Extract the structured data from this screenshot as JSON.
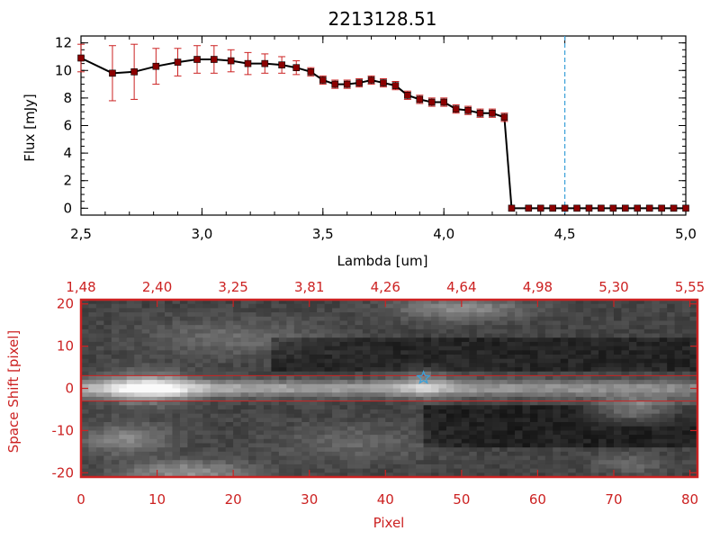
{
  "chart_data": [
    {
      "type": "line",
      "title": "2213128.51",
      "xlabel": "Lambda [um]",
      "ylabel": "Flux [mJy]",
      "xlim": [
        2.5,
        5.0
      ],
      "ylim": [
        -0.5,
        12.5
      ],
      "xticks": [
        2.5,
        3.0,
        3.5,
        4.0,
        4.5,
        5.0
      ],
      "xtick_labels": [
        "2,5",
        "3,0",
        "3,5",
        "4,0",
        "4,5",
        "5,0"
      ],
      "yticks": [
        0,
        2,
        4,
        6,
        8,
        10,
        12
      ],
      "ytick_labels": [
        "0",
        "2",
        "4",
        "6",
        "8",
        "10",
        "12"
      ],
      "vline_x": 4.5,
      "series": [
        {
          "x": [
            2.5,
            2.63,
            2.72,
            2.81,
            2.9,
            2.98,
            3.05,
            3.12,
            3.19,
            3.26,
            3.33,
            3.39,
            3.45,
            3.5,
            3.55,
            3.6,
            3.65,
            3.7,
            3.75,
            3.8,
            3.85,
            3.9,
            3.95,
            4.0,
            4.05,
            4.1,
            4.15,
            4.2,
            4.25,
            4.28,
            4.35,
            4.4,
            4.45,
            4.5,
            4.55,
            4.6,
            4.65,
            4.7,
            4.75,
            4.8,
            4.85,
            4.9,
            4.95,
            5.0
          ],
          "y": [
            10.9,
            9.8,
            9.9,
            10.3,
            10.6,
            10.8,
            10.8,
            10.7,
            10.5,
            10.5,
            10.4,
            10.2,
            9.9,
            9.3,
            9.0,
            9.0,
            9.1,
            9.3,
            9.1,
            8.9,
            8.2,
            7.9,
            7.7,
            7.7,
            7.2,
            7.1,
            6.9,
            6.9,
            6.6,
            0.0,
            0.0,
            0.0,
            0.0,
            0.0,
            0.0,
            0.0,
            0.0,
            0.0,
            0.0,
            0.0,
            0.0,
            0.0,
            0.0,
            0.0
          ],
          "yerr": [
            1.0,
            2.0,
            2.0,
            1.3,
            1.0,
            1.0,
            1.0,
            0.8,
            0.8,
            0.7,
            0.6,
            0.5,
            0.3,
            0.3,
            0.3,
            0.3,
            0.3,
            0.3,
            0.3,
            0.3,
            0.3,
            0.3,
            0.3,
            0.3,
            0.3,
            0.3,
            0.3,
            0.3,
            0.3,
            0.0,
            0.0,
            0.0,
            0.0,
            0.0,
            0.0,
            0.0,
            0.0,
            0.0,
            0.0,
            0.0,
            0.0,
            0.0,
            0.0,
            0.0
          ]
        }
      ],
      "colors": {
        "line": "#000000",
        "markers": "#8b0000",
        "errorbars": "#cc2222",
        "vline": "#3aa0d8"
      }
    },
    {
      "type": "heatmap",
      "xlabel": "Pixel",
      "ylabel": "Space Shift [pixel]",
      "xlim": [
        0,
        81
      ],
      "ylim": [
        -21,
        21
      ],
      "xticks": [
        0,
        10,
        20,
        30,
        40,
        50,
        60,
        70,
        80
      ],
      "xtick_labels": [
        "0",
        "10",
        "20",
        "30",
        "40",
        "50",
        "60",
        "70",
        "80"
      ],
      "yticks": [
        20,
        10,
        0,
        -10,
        -20
      ],
      "ytick_labels": [
        "20",
        "10",
        "0",
        "-10",
        "-20"
      ],
      "top_axis_tick_labels": [
        "1,48",
        "2,40",
        "3,25",
        "3,81",
        "4,26",
        "4,64",
        "4,98",
        "5,30",
        "5,55"
      ],
      "aperture_lines_y": [
        3,
        -3
      ],
      "marker": {
        "x": 45,
        "y": 2.5
      },
      "colors": {
        "axes": "#cc2222",
        "marker": "#3aa0d8"
      }
    }
  ]
}
